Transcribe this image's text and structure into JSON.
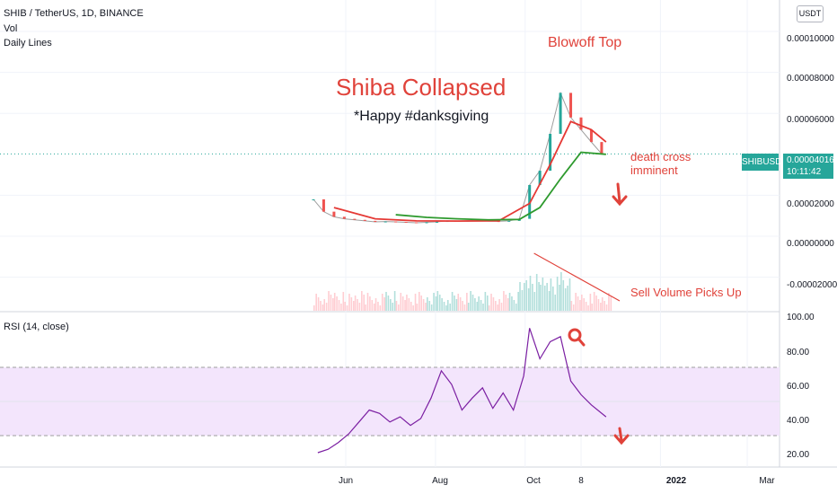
{
  "header": {
    "title": "SHIB / TetherUS, 1D, BINANCE",
    "indicator_1": "Vol",
    "indicator_2": "Daily Lines",
    "rsi_label": "RSI (14, close)"
  },
  "currency_button": "USDT",
  "price_label": {
    "symbol": "SHIBUSDT",
    "price": "0.00004016",
    "countdown": "10:11:42"
  },
  "annotations": {
    "headline": "Shiba Collapsed",
    "subheadline": "*Happy #danksgiving",
    "blowoff": "Blowoff Top",
    "death_cross_line1": "death cross",
    "death_cross_line2": "imminent",
    "sell_volume": "Sell Volume Picks Up"
  },
  "colors": {
    "up": "#26a69a",
    "down": "#ef5350",
    "ma_fast": "#e53935",
    "ma_slow": "#2e9a2e",
    "rsi_line": "#7b1fa2",
    "rsi_band": "#f3e5fc",
    "annotation": "#e0423a"
  },
  "chart_data": [
    {
      "type": "candlestick",
      "title": "SHIB / TetherUS, 1D, BINANCE",
      "x_tick_labels": [
        "Jun",
        "Aug",
        "Oct",
        "8",
        "2022",
        "Mar"
      ],
      "y_tick_labels": [
        "0.00010000",
        "0.00008000",
        "0.00006000",
        "0.00002000",
        "0.00000000",
        "-0.00002000"
      ],
      "ylim": [
        -2.1e-05,
        0.000102
      ],
      "series": [
        {
          "name": "Close",
          "x": [
            "2021-05-10",
            "2021-05-17",
            "2021-05-24",
            "2021-05-31",
            "2021-06-07",
            "2021-06-14",
            "2021-06-21",
            "2021-06-28",
            "2021-07-05",
            "2021-07-12",
            "2021-07-19",
            "2021-07-26",
            "2021-08-02",
            "2021-08-09",
            "2021-08-16",
            "2021-08-23",
            "2021-08-30",
            "2021-09-06",
            "2021-09-13",
            "2021-09-20",
            "2021-09-27",
            "2021-10-04",
            "2021-10-11",
            "2021-10-18",
            "2021-10-25",
            "2021-11-01",
            "2021-11-08",
            "2021-11-15",
            "2021-11-22"
          ],
          "values": [
            1.8e-05,
            1.2e-05,
            9.5e-06,
            8.5e-06,
            8e-06,
            7.5e-06,
            7e-06,
            7.2e-06,
            7e-06,
            6.8e-06,
            6.6e-06,
            6.8e-06,
            7e-06,
            7.5e-06,
            7.4e-06,
            7.6e-06,
            7.8e-06,
            7.4e-06,
            7.3e-06,
            7.5e-06,
            8.5e-06,
            2.5e-05,
            3.2e-05,
            5e-05,
            7e-05,
            5.8e-05,
            5.2e-05,
            4.6e-05,
            4.02e-05
          ]
        },
        {
          "name": "MA fast",
          "x": [
            "2021-05-24",
            "2021-06-21",
            "2021-07-19",
            "2021-08-16",
            "2021-09-13",
            "2021-10-04",
            "2021-10-18",
            "2021-11-01",
            "2021-11-15",
            "2021-11-25"
          ],
          "values": [
            1.4e-05,
            8.5e-06,
            7.5e-06,
            7.4e-06,
            7.5e-06,
            1.6e-05,
            3.5e-05,
            5.6e-05,
            5.2e-05,
            4.6e-05
          ]
        },
        {
          "name": "MA slow",
          "x": [
            "2021-07-05",
            "2021-07-26",
            "2021-08-16",
            "2021-09-06",
            "2021-09-27",
            "2021-10-11",
            "2021-10-25",
            "2021-11-08",
            "2021-11-25"
          ],
          "values": [
            1.05e-05,
            9.2e-06,
            8.5e-06,
            8e-06,
            8.2e-06,
            1.4e-05,
            2.8e-05,
            4.1e-05,
            4e-05
          ]
        }
      ]
    },
    {
      "type": "line",
      "title": "RSI (14, close)",
      "y_tick_labels": [
        "100.00",
        "80.00",
        "60.00",
        "40.00",
        "20.00"
      ],
      "ylim": [
        15,
        100
      ],
      "bands": [
        30,
        70
      ],
      "series": [
        {
          "name": "RSI",
          "x": [
            "2021-05-13",
            "2021-05-20",
            "2021-05-27",
            "2021-06-03",
            "2021-06-10",
            "2021-06-17",
            "2021-06-24",
            "2021-07-01",
            "2021-07-08",
            "2021-07-15",
            "2021-07-22",
            "2021-07-29",
            "2021-08-05",
            "2021-08-12",
            "2021-08-19",
            "2021-08-26",
            "2021-09-02",
            "2021-09-09",
            "2021-09-16",
            "2021-09-23",
            "2021-09-30",
            "2021-10-04",
            "2021-10-11",
            "2021-10-18",
            "2021-10-25",
            "2021-11-01",
            "2021-11-08",
            "2021-11-15",
            "2021-11-25"
          ],
          "values": [
            20,
            22,
            26,
            31,
            38,
            45,
            43,
            38,
            41,
            36,
            40,
            52,
            68,
            60,
            45,
            52,
            58,
            46,
            55,
            45,
            65,
            93,
            75,
            85,
            88,
            62,
            54,
            48,
            41
          ]
        }
      ]
    }
  ]
}
